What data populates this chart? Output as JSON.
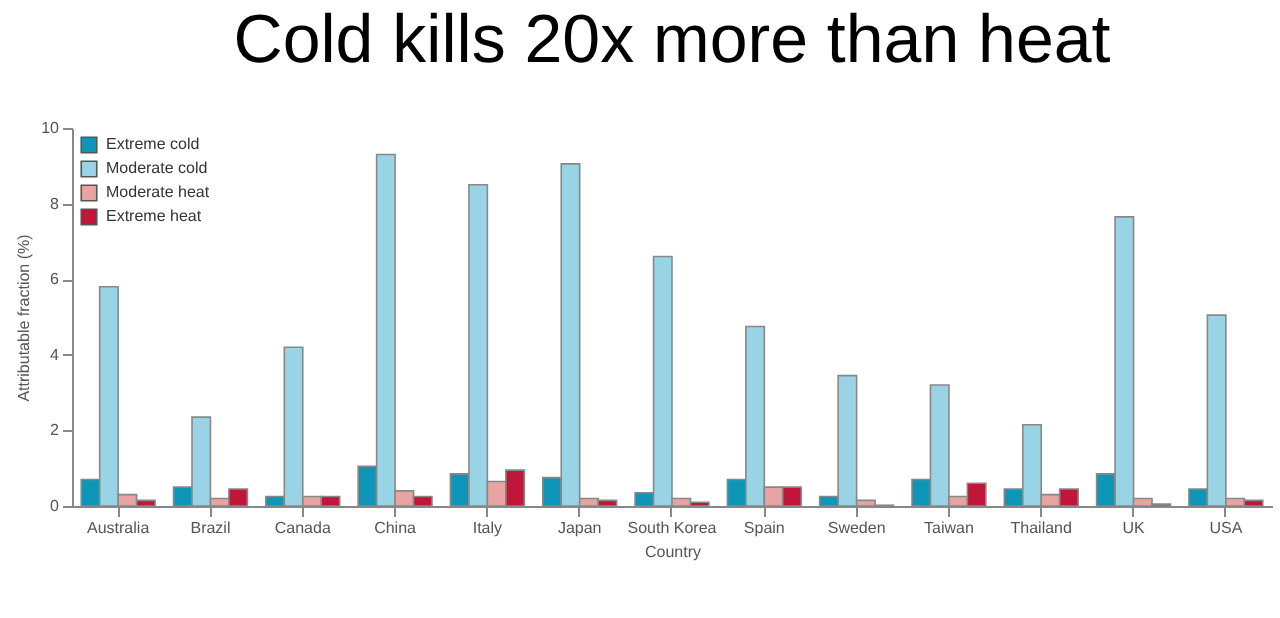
{
  "chart_data": {
    "type": "bar",
    "title": "Cold kills 20x more than heat",
    "xlabel": "Country",
    "ylabel": "Attributable fraction (%)",
    "categories": [
      "Australia",
      "Brazil",
      "Canada",
      "China",
      "Italy",
      "Japan",
      "South Korea",
      "Spain",
      "Sweden",
      "Taiwan",
      "Thailand",
      "UK",
      "USA"
    ],
    "series": [
      {
        "name": "Extreme cold",
        "color": "#0e96b8",
        "values": [
          0.7,
          0.5,
          0.25,
          1.05,
          0.85,
          0.75,
          0.35,
          0.7,
          0.25,
          0.7,
          0.45,
          0.85,
          0.45
        ]
      },
      {
        "name": "Moderate cold",
        "color": "#98d4e6",
        "values": [
          5.8,
          2.35,
          4.2,
          9.3,
          8.5,
          9.05,
          6.6,
          4.75,
          3.45,
          3.2,
          2.15,
          7.65,
          5.05
        ]
      },
      {
        "name": "Moderate heat",
        "color": "#e8a4a0",
        "values": [
          0.3,
          0.2,
          0.25,
          0.4,
          0.65,
          0.2,
          0.2,
          0.5,
          0.15,
          0.25,
          0.3,
          0.2,
          0.2
        ]
      },
      {
        "name": "Extreme heat",
        "color": "#c0163a",
        "values": [
          0.15,
          0.45,
          0.25,
          0.25,
          0.95,
          0.15,
          0.1,
          0.5,
          0.02,
          0.6,
          0.45,
          0.05,
          0.15
        ]
      }
    ],
    "ylim": [
      0,
      10
    ],
    "yticks": [
      0,
      2,
      4,
      6,
      8,
      10
    ],
    "grid": false,
    "legend": "top left"
  }
}
